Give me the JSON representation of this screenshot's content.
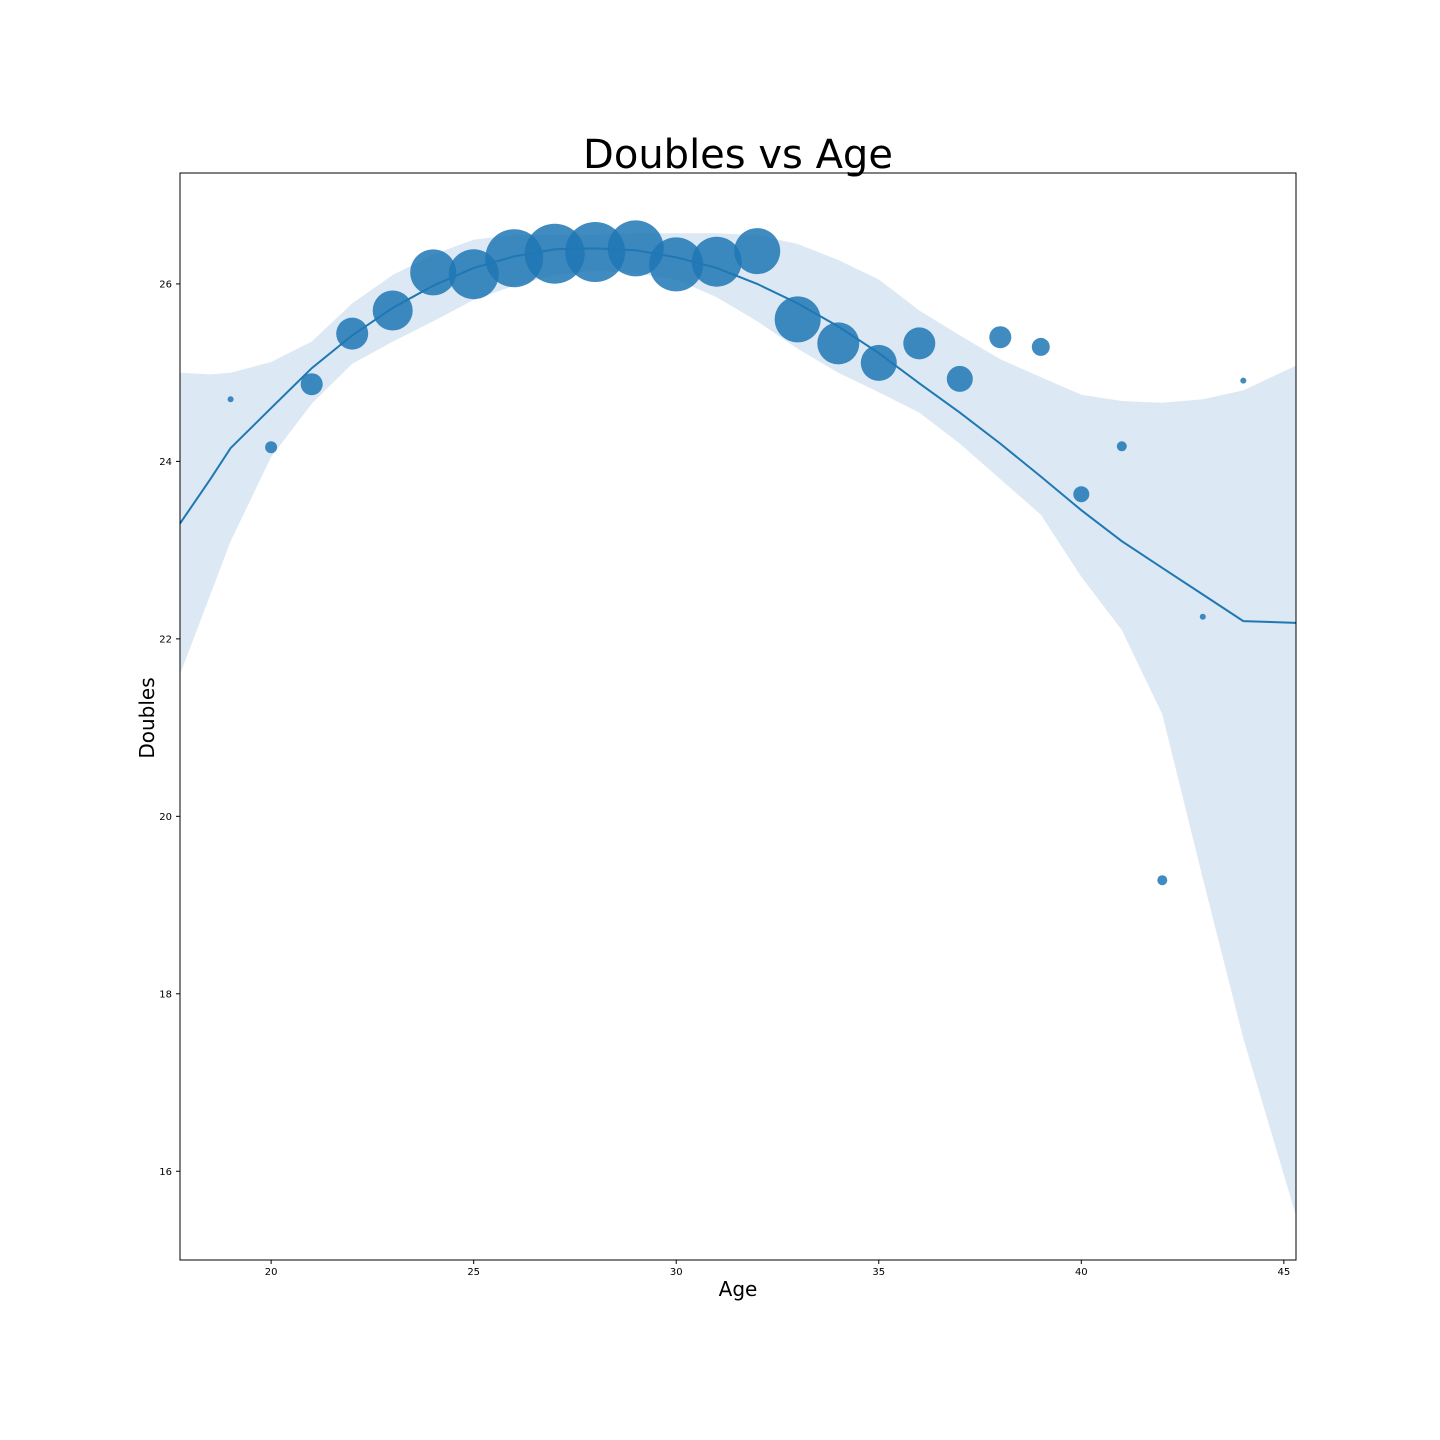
{
  "chart_data": {
    "type": "scatter",
    "title": "Doubles vs Age",
    "xlabel": "Age",
    "ylabel": "Doubles",
    "xlim": [
      17.75,
      45.3
    ],
    "ylim": [
      15.0,
      27.25
    ],
    "xticks": [
      "20",
      "25",
      "30",
      "35",
      "40",
      "45"
    ],
    "yticks": [
      "16",
      "18",
      "20",
      "22",
      "24",
      "26"
    ],
    "grid": false,
    "marker_color": "#1f77b4",
    "band_color": "#dce8f3",
    "points": [
      {
        "x": 19,
        "y": 24.7,
        "size": 3
      },
      {
        "x": 20,
        "y": 24.16,
        "size": 6
      },
      {
        "x": 21,
        "y": 24.87,
        "size": 11
      },
      {
        "x": 22,
        "y": 25.44,
        "size": 16
      },
      {
        "x": 23,
        "y": 25.7,
        "size": 20
      },
      {
        "x": 24,
        "y": 26.13,
        "size": 23
      },
      {
        "x": 25,
        "y": 26.11,
        "size": 25
      },
      {
        "x": 26,
        "y": 26.29,
        "size": 29
      },
      {
        "x": 27,
        "y": 26.34,
        "size": 30
      },
      {
        "x": 28,
        "y": 26.36,
        "size": 30
      },
      {
        "x": 29,
        "y": 26.4,
        "size": 28
      },
      {
        "x": 30,
        "y": 26.22,
        "size": 27
      },
      {
        "x": 31,
        "y": 26.25,
        "size": 25
      },
      {
        "x": 32,
        "y": 26.37,
        "size": 23
      },
      {
        "x": 33,
        "y": 25.6,
        "size": 23
      },
      {
        "x": 34,
        "y": 25.33,
        "size": 21
      },
      {
        "x": 35,
        "y": 25.11,
        "size": 18
      },
      {
        "x": 36,
        "y": 25.33,
        "size": 16
      },
      {
        "x": 37,
        "y": 24.93,
        "size": 13
      },
      {
        "x": 38,
        "y": 25.4,
        "size": 11
      },
      {
        "x": 39,
        "y": 25.29,
        "size": 9
      },
      {
        "x": 40,
        "y": 23.63,
        "size": 8
      },
      {
        "x": 41,
        "y": 24.17,
        "size": 5
      },
      {
        "x": 42,
        "y": 19.28,
        "size": 5
      },
      {
        "x": 43,
        "y": 22.25,
        "size": 3
      },
      {
        "x": 44,
        "y": 24.91,
        "size": 3
      }
    ],
    "fit_line": {
      "x": [
        17.75,
        18.5,
        19,
        20,
        21,
        22,
        23,
        24,
        25,
        26,
        27,
        28,
        29,
        30,
        31,
        32,
        33,
        34,
        35,
        36,
        37,
        38,
        39,
        40,
        41,
        42,
        43,
        44,
        45.3
      ],
      "y": [
        23.3,
        23.8,
        24.15,
        24.6,
        25.05,
        25.42,
        25.73,
        25.98,
        26.18,
        26.31,
        26.39,
        26.4,
        26.38,
        26.3,
        26.18,
        26.0,
        25.78,
        25.52,
        25.22,
        24.88,
        24.55,
        24.2,
        23.83,
        23.45,
        23.1,
        22.8,
        22.5,
        22.2,
        22.18
      ]
    },
    "confidence_band": {
      "x": [
        17.75,
        18.5,
        19,
        20,
        21,
        22,
        23,
        24,
        25,
        26,
        27,
        28,
        29,
        30,
        31,
        32,
        33,
        34,
        35,
        36,
        37,
        38,
        39,
        40,
        41,
        42,
        43,
        44,
        45.3
      ],
      "upper": [
        25.0,
        24.98,
        25.0,
        25.12,
        25.35,
        25.78,
        26.1,
        26.33,
        26.5,
        26.55,
        26.55,
        26.55,
        26.57,
        26.57,
        26.57,
        26.55,
        26.45,
        26.27,
        26.05,
        25.7,
        25.42,
        25.15,
        24.95,
        24.75,
        24.68,
        24.66,
        24.7,
        24.8,
        25.08
      ],
      "lower": [
        21.6,
        22.5,
        23.1,
        24.05,
        24.65,
        25.1,
        25.35,
        25.58,
        25.82,
        25.98,
        26.1,
        26.15,
        26.12,
        26.05,
        25.85,
        25.58,
        25.27,
        25.0,
        24.78,
        24.55,
        24.2,
        23.8,
        23.4,
        22.7,
        22.1,
        21.15,
        19.3,
        17.5,
        15.5
      ]
    }
  }
}
